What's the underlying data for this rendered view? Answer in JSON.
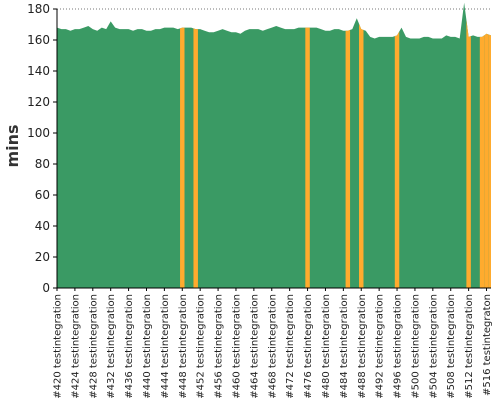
{
  "chart_data": {
    "type": "area",
    "title": "",
    "xlabel": "",
    "ylabel": "mins",
    "ylim": [
      0,
      180
    ],
    "y_ticks": [
      0,
      20,
      40,
      60,
      80,
      100,
      120,
      140,
      160,
      180
    ],
    "grid": true,
    "x_tick_labels": [
      "#420 testintegration",
      "#424 testintegration",
      "#428 testintegration",
      "#432 testintegration",
      "#436 testintegration",
      "#440 testintegration",
      "#444 testintegration",
      "#448 testintegration",
      "#452 testintegration",
      "#456 testintegration",
      "#460 testintegration",
      "#464 testintegration",
      "#468 testintegration",
      "#472 testintegration",
      "#476 testintegration",
      "#480 testintegration",
      "#484 testintegration",
      "#488 testintegration",
      "#492 testintegration",
      "#496 testintegration",
      "#500 testintegration",
      "#504 testintegration",
      "#508 testintegration",
      "#512 testintegration",
      "#516 testintegraton"
    ],
    "builds_from": 420,
    "builds_to": 517,
    "values": [
      168,
      167,
      167,
      166,
      167,
      167,
      168,
      169,
      167,
      166,
      168,
      167,
      172,
      168,
      167,
      167,
      167,
      166,
      167,
      167,
      166,
      166,
      167,
      167,
      168,
      168,
      168,
      167,
      168,
      168,
      168,
      167,
      167,
      166,
      165,
      165,
      166,
      167,
      166,
      165,
      165,
      164,
      166,
      167,
      167,
      167,
      166,
      167,
      168,
      169,
      168,
      167,
      167,
      167,
      168,
      168,
      168,
      168,
      168,
      167,
      166,
      166,
      167,
      167,
      166,
      166,
      167,
      174,
      167,
      166,
      162,
      161,
      162,
      162,
      162,
      162,
      163,
      168,
      162,
      161,
      161,
      161,
      162,
      162,
      161,
      161,
      161,
      163,
      162,
      162,
      161,
      184,
      162,
      163,
      162,
      162,
      164,
      163
    ],
    "highlight_builds": [
      448,
      451,
      476,
      485,
      488,
      496,
      512,
      515,
      516,
      517
    ],
    "colors": {
      "normal": "#3a9a64",
      "highlight": "#ffab2e",
      "grid": "#777777",
      "axis": "#000000"
    }
  }
}
